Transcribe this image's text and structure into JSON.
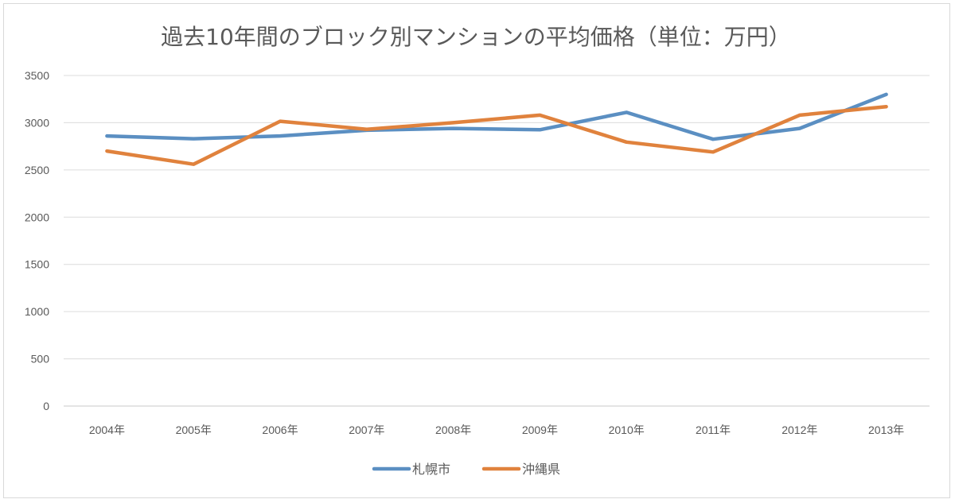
{
  "chart_data": {
    "type": "line",
    "title": "過去10年間のブロック別マンションの平均価格（単位：万円）",
    "categories": [
      "2004年",
      "2005年",
      "2006年",
      "2007年",
      "2008年",
      "2009年",
      "2010年",
      "2011年",
      "2012年",
      "2013年"
    ],
    "series": [
      {
        "name": "札幌市",
        "color": "#5b8fc2",
        "values": [
          2860,
          2830,
          2860,
          2920,
          2940,
          2925,
          3110,
          2825,
          2940,
          3300
        ]
      },
      {
        "name": "沖縄県",
        "color": "#e0823d",
        "values": [
          2700,
          2560,
          3015,
          2930,
          3000,
          3080,
          2795,
          2690,
          3080,
          3170
        ]
      }
    ],
    "ylim": [
      0,
      3500
    ],
    "yticks": [
      "0",
      "500",
      "1000",
      "1500",
      "2000",
      "2500",
      "3000",
      "3500"
    ],
    "grid": true,
    "legend_position": "bottom"
  }
}
